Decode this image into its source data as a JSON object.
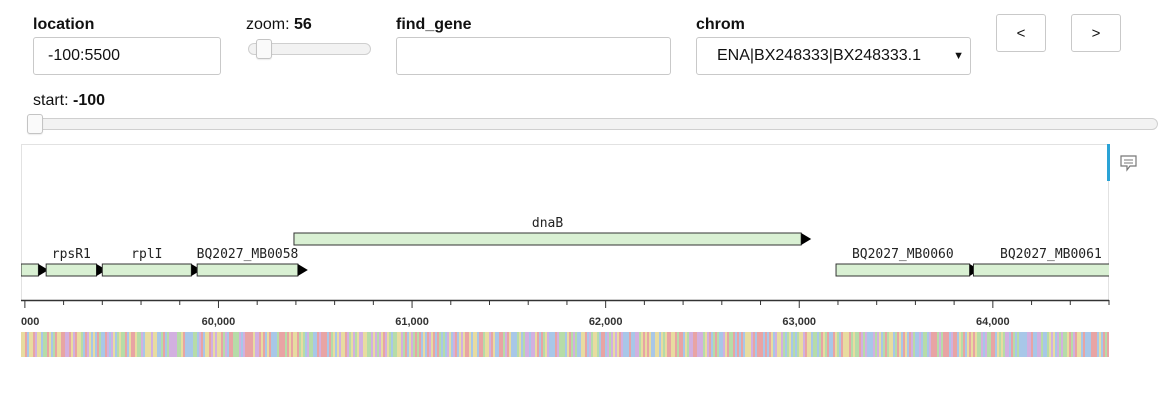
{
  "controls": {
    "location": {
      "label": "location",
      "value": "-100:5500"
    },
    "zoom": {
      "label": "zoom:",
      "value": "56",
      "level": 0.04
    },
    "find_gene": {
      "label": "find_gene",
      "value": ""
    },
    "chrom": {
      "label": "chrom",
      "value": "ENA|BX248333|BX248333.1"
    },
    "prev_label": "<",
    "next_label": ">",
    "start": {
      "label": "start:",
      "value": "-100",
      "level": 0.0
    }
  },
  "track": {
    "genes": [
      {
        "name": "",
        "start": 58980,
        "end": 59070
      },
      {
        "name": "rpsR1",
        "start": 59110,
        "end": 59370
      },
      {
        "name": "rplI",
        "start": 59400,
        "end": 59860
      },
      {
        "name": "BQ2027_MB0058",
        "start": 59890,
        "end": 60410
      },
      {
        "name": "dnaB",
        "start": 60390,
        "end": 63010
      },
      {
        "name": "BQ2027_MB0060",
        "start": 63190,
        "end": 63880
      },
      {
        "name": "BQ2027_MB0061",
        "start": 63900,
        "end": 64700
      }
    ],
    "axis_ticks": [
      "000",
      "60,000",
      "61,000",
      "62,000",
      "63,000",
      "64,000"
    ],
    "view_range": [
      58980,
      64600
    ],
    "colors": {
      "gene_fill": "#d9f0d3",
      "gene_stroke": "#333333",
      "marker": "#2aa3d6"
    }
  },
  "toolbar": {
    "comment_icon": "comment-icon"
  }
}
